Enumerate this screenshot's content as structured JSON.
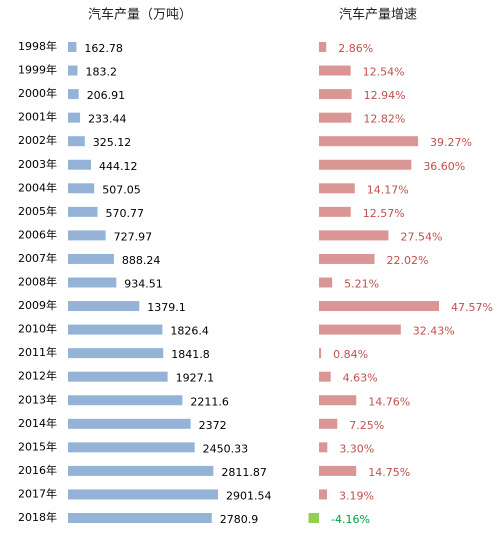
{
  "chart_data": [
    {
      "type": "bar",
      "orientation": "horizontal",
      "title": "汽车产量（万吨）",
      "categories": [
        "1998年",
        "1999年",
        "2000年",
        "2001年",
        "2002年",
        "2003年",
        "2004年",
        "2005年",
        "2006年",
        "2007年",
        "2008年",
        "2009年",
        "2010年",
        "2011年",
        "2012年",
        "2013年",
        "2014年",
        "2015年",
        "2016年",
        "2017年",
        "2018年"
      ],
      "values": [
        162.78,
        183.2,
        206.91,
        233.44,
        325.12,
        444.12,
        507.05,
        570.77,
        727.97,
        888.24,
        934.51,
        1379.1,
        1826.4,
        1841.8,
        1927.1,
        2211.6,
        2372,
        2450.33,
        2811.87,
        2901.54,
        2780.9
      ],
      "color": "#95b3d7"
    },
    {
      "type": "bar",
      "orientation": "horizontal",
      "title": "汽车产量增速",
      "values": [
        2.86,
        12.54,
        12.94,
        12.82,
        39.27,
        36.6,
        14.17,
        12.57,
        27.54,
        22.02,
        5.21,
        47.57,
        32.43,
        0.84,
        4.63,
        14.76,
        7.25,
        3.3,
        14.75,
        3.19,
        -4.16
      ],
      "value_labels": [
        "2.86%",
        "12.54%",
        "12.94%",
        "12.82%",
        "39.27%",
        "36.60%",
        "14.17%",
        "12.57%",
        "27.54%",
        "22.02%",
        "5.21%",
        "47.57%",
        "32.43%",
        "0.84%",
        "4.63%",
        "14.76%",
        "7.25%",
        "3.30%",
        "14.75%",
        "3.19%",
        "-4.16%"
      ],
      "color": "#d99694",
      "negative_color": "#92d050"
    }
  ]
}
